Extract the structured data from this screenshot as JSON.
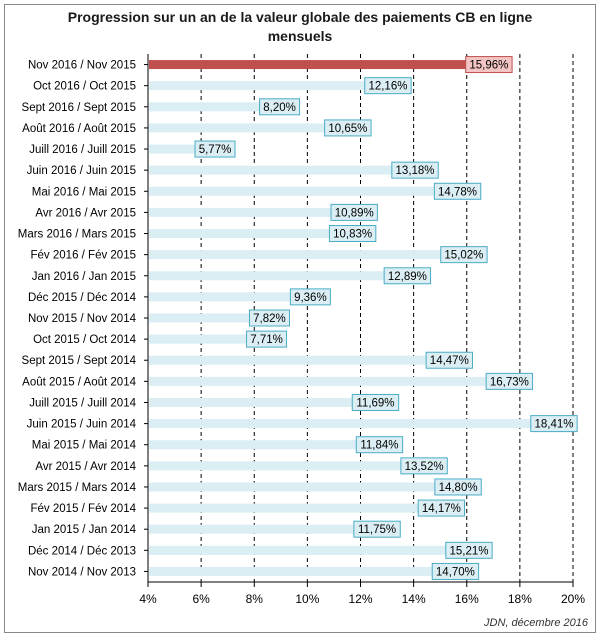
{
  "chart_data": {
    "type": "bar",
    "orientation": "horizontal",
    "title_lines": [
      "Progression sur un an de la valeur globale des paiements CB en ligne",
      "mensuels"
    ],
    "source": "JDN, décembre 2016",
    "x_ticks": [
      "4%",
      "6%",
      "8%",
      "10%",
      "12%",
      "14%",
      "16%",
      "18%",
      "20%"
    ],
    "xlim": [
      4,
      20
    ],
    "grid": true,
    "categories": [
      "Nov 2016 / Nov 2015",
      "Oct 2016 / Oct 2015",
      "Sept 2016 / Sept 2015",
      "Août 2016 / Août 2015",
      "Juill 2016 / Juill 2015",
      "Juin 2016 / Juin 2015",
      "Mai 2016 / Mai 2015",
      "Avr 2016 / Avr 2015",
      "Mars 2016 / Mars 2015",
      "Fév 2016 / Fév 2015",
      "Jan 2016 / Jan 2015",
      "Déc 2015 / Déc 2014",
      "Nov 2015 / Nov 2014",
      "Oct 2015 / Oct 2014",
      "Sept 2015 / Sept 2014",
      "Août 2015 / Août 2014",
      "Juill 2015 / Juill 2014",
      "Juin 2015 / Juin 2014",
      "Mai 2015 / Mai 2014",
      "Avr 2015 / Avr 2014",
      "Mars 2015 / Mars 2014",
      "Fév 2015 / Fév 2014",
      "Jan 2015 / Jan 2014",
      "Déc 2014 / Déc 2013",
      "Nov 2014 / Nov 2013"
    ],
    "values": [
      15.96,
      12.16,
      8.2,
      10.65,
      5.77,
      13.18,
      14.78,
      10.89,
      10.83,
      15.02,
      12.89,
      9.36,
      7.82,
      7.71,
      14.47,
      16.73,
      11.69,
      18.41,
      11.84,
      13.52,
      14.8,
      14.17,
      11.75,
      15.21,
      14.7
    ],
    "value_labels": [
      "15,96%",
      "12,16%",
      "8,20%",
      "10,65%",
      "5,77%",
      "13,18%",
      "14,78%",
      "10,89%",
      "10,83%",
      "15,02%",
      "12,89%",
      "9,36%",
      "7,82%",
      "7,71%",
      "14,47%",
      "16,73%",
      "11,69%",
      "18,41%",
      "11,84%",
      "13,52%",
      "14,80%",
      "14,17%",
      "11,75%",
      "15,21%",
      "14,70%"
    ],
    "highlight_index": 0,
    "colors": {
      "bar": "#dbeef4",
      "highlight_bar": "#c0504d",
      "label_bg": "#dbeef4",
      "label_border": "#4bacc6",
      "highlight_label_bg": "#f2c4c4",
      "highlight_label_border": "#c0504d",
      "grid": "#000000"
    }
  }
}
